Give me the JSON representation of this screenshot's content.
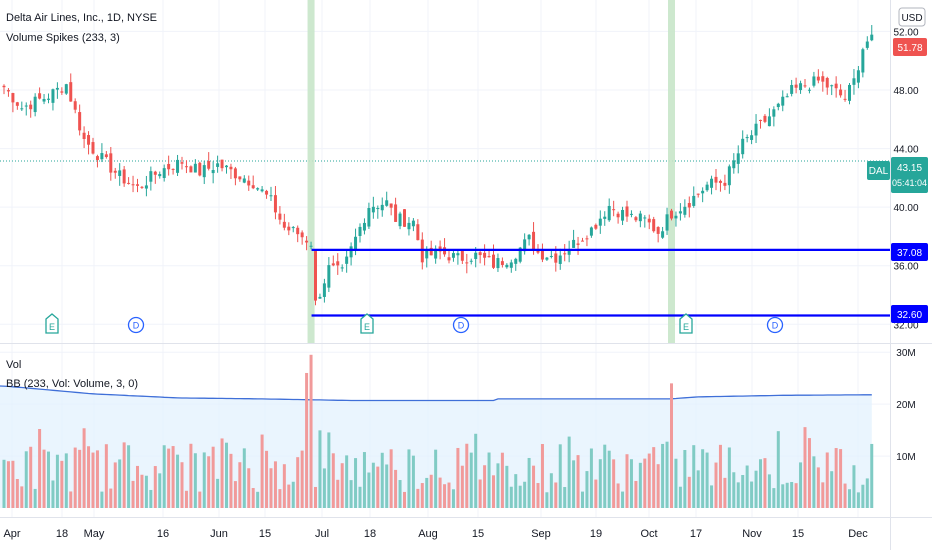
{
  "header": {
    "title": "Delta Air Lines, Inc., 1D, NYSE",
    "indicator": "Volume Spikes (233, 3)",
    "currency": "USD"
  },
  "volume_pane": {
    "title": "Vol",
    "indicator": "BB (233, Vol: Volume, 3, 0)"
  },
  "badges": {
    "last_price": "51.78",
    "symbol": "DAL",
    "symbol_price": "43.15",
    "countdown": "05:41:04",
    "upper_level": "37.08",
    "lower_level": "32.60"
  },
  "colors": {
    "up": "#26a69a",
    "down": "#ef5350",
    "vol_up": "#80cbc4",
    "vol_down": "#f19a9a",
    "level_line": "#0000ff",
    "band_line": "#3f6fd8",
    "band_fill": "#e3f2fd",
    "spike_highlight": "#c8e6c9",
    "last_price_badge": "#ef5350",
    "symbol_badge": "#26a69a"
  },
  "chart_data": {
    "type": "candlestick",
    "title": "Delta Air Lines, Inc., 1D, NYSE",
    "price_axis": {
      "ticks": [
        "52.00",
        "48.00",
        "44.00",
        "40.00",
        "36.00",
        "32.00"
      ],
      "range": [
        31.2,
        53.6
      ]
    },
    "volume_axis": {
      "ticks": [
        "30M",
        "20M",
        "10M"
      ],
      "range": [
        0,
        31
      ]
    },
    "time_axis": {
      "ticks": [
        "Apr",
        "18",
        "May",
        "16",
        "Jun",
        "15",
        "Jul",
        "18",
        "Aug",
        "15",
        "Sep",
        "19",
        "Oct",
        "17",
        "Nov",
        "15",
        "Dec"
      ]
    },
    "levels": [
      37.08,
      32.6
    ],
    "events": [
      {
        "type": "E",
        "label": "E"
      },
      {
        "type": "D",
        "label": "D"
      },
      {
        "type": "E",
        "label": "E"
      },
      {
        "type": "D",
        "label": "D"
      },
      {
        "type": "E",
        "label": "E"
      },
      {
        "type": "D",
        "label": "D"
      }
    ],
    "price_path": [
      [
        0,
        48.2
      ],
      [
        4,
        46.8
      ],
      [
        10,
        47.6
      ],
      [
        14,
        48.4
      ],
      [
        18,
        44.6
      ],
      [
        22,
        43.3
      ],
      [
        26,
        42.1
      ],
      [
        30,
        41.3
      ],
      [
        35,
        42.5
      ],
      [
        40,
        43.1
      ],
      [
        44,
        42.4
      ],
      [
        48,
        42.9
      ],
      [
        52,
        42.3
      ],
      [
        56,
        41.7
      ],
      [
        60,
        40.4
      ],
      [
        63,
        38.6
      ],
      [
        66,
        38.2
      ],
      [
        69,
        37.6
      ],
      [
        70,
        33.4
      ],
      [
        73,
        35.8
      ],
      [
        76,
        35.5
      ],
      [
        78,
        37.1
      ],
      [
        82,
        40.1
      ],
      [
        86,
        40.3
      ],
      [
        88,
        39.2
      ],
      [
        92,
        39.0
      ],
      [
        94,
        36.6
      ],
      [
        98,
        36.9
      ],
      [
        102,
        36.5
      ],
      [
        106,
        36.7
      ],
      [
        110,
        36.1
      ],
      [
        114,
        36.6
      ],
      [
        118,
        37.8
      ],
      [
        120,
        36.9
      ],
      [
        124,
        36.6
      ],
      [
        128,
        37.5
      ],
      [
        132,
        38.5
      ],
      [
        136,
        40.1
      ],
      [
        140,
        39.4
      ],
      [
        144,
        39.1
      ],
      [
        147,
        38.3
      ],
      [
        150,
        39.6
      ],
      [
        154,
        40.4
      ],
      [
        158,
        41.5
      ],
      [
        162,
        41.8
      ],
      [
        166,
        44.3
      ],
      [
        170,
        45.6
      ],
      [
        174,
        46.8
      ],
      [
        177,
        47.9
      ],
      [
        180,
        48.3
      ],
      [
        183,
        48.6
      ],
      [
        186,
        48.1
      ],
      [
        189,
        47.4
      ],
      [
        191,
        48.6
      ],
      [
        193,
        50.9
      ],
      [
        195,
        51.78
      ]
    ],
    "volume": {
      "typical_millions": [
        3,
        13
      ],
      "spikes": [
        {
          "bar": 69,
          "millions": 29.5
        },
        {
          "bar": 150,
          "millions": 24.0
        }
      ],
      "band_upper_millions": [
        23.5,
        22.0,
        21.2,
        21.0,
        20.7,
        20.4,
        20.1,
        19.9,
        21.1,
        21.4,
        21.5
      ]
    },
    "highlighted_bars": [
      69,
      150
    ]
  }
}
